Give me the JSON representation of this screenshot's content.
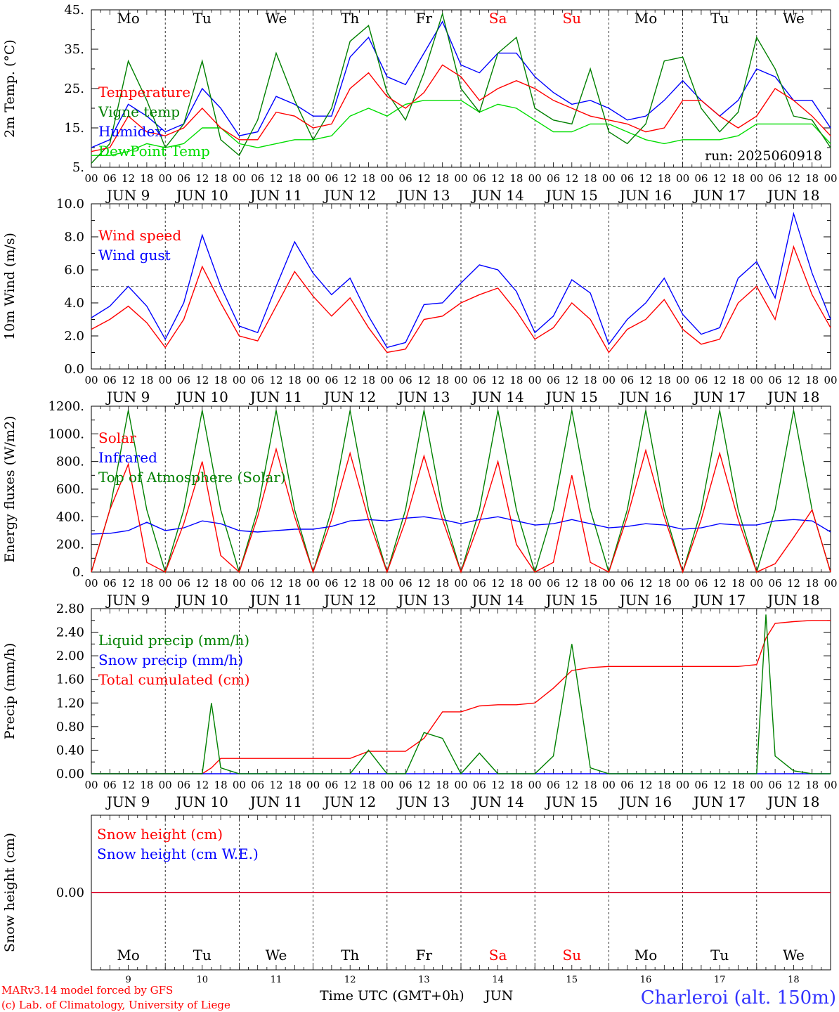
{
  "days": [
    "Mo",
    "Tu",
    "We",
    "Th",
    "Fr",
    "Sa",
    "Su",
    "Mo",
    "Tu",
    "We"
  ],
  "day_colors": [
    "#000000",
    "#000000",
    "#000000",
    "#000000",
    "#000000",
    "#ff0000",
    "#ff0000",
    "#000000",
    "#000000",
    "#000000"
  ],
  "date_labels": [
    "JUN  9",
    "JUN 10",
    "JUN 11",
    "JUN 12",
    "JUN 13",
    "JUN 14",
    "JUN 15",
    "JUN 16",
    "JUN 17",
    "JUN 18"
  ],
  "hour_ticks": [
    "00",
    "06",
    "12",
    "18"
  ],
  "hour_end": "00",
  "bottom_day_numbers": [
    "9",
    "10",
    "11",
    "12",
    "13",
    "14",
    "15",
    "16",
    "17",
    "18"
  ],
  "footer": {
    "model_line": "MARv3.14 model forced by GFS",
    "copyright_line": "(c) Lab. of Climatology, University of Liege",
    "time_axis_label": "Time UTC (GMT+0h)",
    "month_label": "JUN",
    "station": "Charleroi (alt. 150m)"
  },
  "colors": {
    "red": "#ff0000",
    "green": "#008000",
    "blue": "#0000ff",
    "lightgreen": "#00dd00",
    "station": "#3333ff"
  },
  "chart_data": [
    {
      "type": "line",
      "ylabel": "2m Temp. (°C)",
      "ylim": [
        5,
        45
      ],
      "ytick_labels": [
        "45.",
        "35.",
        "25.",
        "15.",
        "5."
      ],
      "ytick_values": [
        45,
        35,
        25,
        15,
        5
      ],
      "annotation": "run: 2025060918",
      "x_hours": [
        0,
        6,
        12,
        18,
        24,
        30,
        36,
        42,
        48,
        54,
        60,
        66,
        72,
        78,
        84,
        90,
        96,
        102,
        108,
        114,
        120,
        126,
        132,
        138,
        144,
        150,
        156,
        162,
        168,
        174,
        180,
        186,
        192,
        198,
        204,
        210,
        216,
        222,
        228,
        234,
        240
      ],
      "series": [
        {
          "name": "Temperature",
          "color": "#ff0000",
          "values": [
            9,
            10,
            18,
            14,
            13,
            15,
            20,
            15,
            12,
            12,
            19,
            18,
            15,
            16,
            25,
            29,
            23,
            20,
            24,
            31,
            28,
            22,
            25,
            27,
            25,
            22,
            20,
            18,
            17,
            16,
            14,
            15,
            22,
            22,
            18,
            15,
            18,
            25,
            22,
            18,
            13
          ]
        },
        {
          "name": "Vigne temp",
          "color": "#008000",
          "values": [
            6,
            11,
            32,
            22,
            10,
            16,
            32,
            12,
            8,
            17,
            34,
            22,
            12,
            20,
            37,
            41,
            24,
            17,
            29,
            44,
            25,
            19,
            34,
            38,
            20,
            17,
            16,
            30,
            14,
            11,
            16,
            32,
            33,
            20,
            14,
            19,
            38,
            30,
            18,
            17,
            10
          ]
        },
        {
          "name": "Humidex",
          "color": "#0000ff",
          "values": [
            10,
            12,
            21,
            18,
            14,
            16,
            25,
            20,
            13,
            14,
            23,
            21,
            18,
            18,
            33,
            38,
            28,
            26,
            34,
            42,
            31,
            29,
            34,
            34,
            28,
            24,
            21,
            22,
            20,
            17,
            18,
            22,
            27,
            22,
            18,
            22,
            30,
            28,
            22,
            22,
            15
          ]
        },
        {
          "name": "DewPoint Temp",
          "color": "#00dd00",
          "values": [
            8,
            8,
            9,
            11,
            10,
            11,
            15,
            15,
            11,
            10,
            11,
            12,
            12,
            13,
            18,
            20,
            18,
            21,
            22,
            22,
            22,
            19,
            21,
            20,
            17,
            14,
            14,
            16,
            16,
            14,
            12,
            11,
            12,
            12,
            12,
            13,
            16,
            16,
            16,
            16,
            11
          ]
        }
      ]
    },
    {
      "type": "line",
      "ylabel": "10m Wind (m/s)",
      "ylim": [
        0,
        10
      ],
      "ytick_labels": [
        "10.0",
        "8.0",
        "6.0",
        "4.0",
        "2.0",
        "0.0"
      ],
      "ytick_values": [
        10,
        8,
        6,
        4,
        2,
        0
      ],
      "reference_line": 5,
      "x_hours": [
        0,
        6,
        12,
        18,
        24,
        30,
        36,
        42,
        48,
        54,
        60,
        66,
        72,
        78,
        84,
        90,
        96,
        102,
        108,
        114,
        120,
        126,
        132,
        138,
        144,
        150,
        156,
        162,
        168,
        174,
        180,
        186,
        192,
        198,
        204,
        210,
        216,
        222,
        228,
        234,
        240
      ],
      "series": [
        {
          "name": "Wind speed",
          "color": "#ff0000",
          "values": [
            2.4,
            3.0,
            3.8,
            2.8,
            1.3,
            3.0,
            6.2,
            4.0,
            2.0,
            1.7,
            3.8,
            5.9,
            4.4,
            3.2,
            4.3,
            2.5,
            1.0,
            1.2,
            3.0,
            3.2,
            4.0,
            4.5,
            4.9,
            3.5,
            1.8,
            2.5,
            4.0,
            3.0,
            1.0,
            2.4,
            3.0,
            4.2,
            2.4,
            1.5,
            1.8,
            4.0,
            5.0,
            3.0,
            7.4,
            4.5,
            2.5
          ]
        },
        {
          "name": "Wind gust",
          "color": "#0000ff",
          "values": [
            3.1,
            3.8,
            5.0,
            3.8,
            1.8,
            4.0,
            8.1,
            5.0,
            2.6,
            2.2,
            5.0,
            7.7,
            5.8,
            4.5,
            5.5,
            3.2,
            1.3,
            1.6,
            3.9,
            4.0,
            5.2,
            6.3,
            6.0,
            4.7,
            2.2,
            3.2,
            5.4,
            4.6,
            1.5,
            3.0,
            4.0,
            5.5,
            3.3,
            2.1,
            2.5,
            5.5,
            6.5,
            4.3,
            9.4,
            5.8,
            3.0
          ]
        }
      ]
    },
    {
      "type": "line",
      "ylabel": "Energy fluxes (W/m2)",
      "ylim": [
        0,
        1200
      ],
      "ytick_labels": [
        "1200.",
        "1000.",
        "800.",
        "600.",
        "400.",
        "200.",
        "0."
      ],
      "ytick_values": [
        1200,
        1000,
        800,
        600,
        400,
        200,
        0
      ],
      "x_hours": [
        0,
        6,
        12,
        18,
        24,
        30,
        36,
        42,
        48,
        54,
        60,
        66,
        72,
        78,
        84,
        90,
        96,
        102,
        108,
        114,
        120,
        126,
        132,
        138,
        144,
        150,
        156,
        162,
        168,
        174,
        180,
        186,
        192,
        198,
        204,
        210,
        216,
        222,
        228,
        234,
        240
      ],
      "toa_peak": 1170,
      "series": [
        {
          "name": "Solar",
          "color": "#ff0000",
          "values": [
            0,
            450,
            780,
            70,
            0,
            350,
            800,
            120,
            0,
            400,
            890,
            400,
            0,
            380,
            860,
            380,
            0,
            370,
            840,
            380,
            0,
            360,
            800,
            200,
            0,
            70,
            700,
            70,
            0,
            400,
            880,
            400,
            0,
            380,
            860,
            380,
            0,
            60,
            250,
            450,
            0
          ]
        },
        {
          "name": "Infrared",
          "color": "#0000ff",
          "values": [
            275,
            280,
            300,
            360,
            300,
            320,
            370,
            350,
            300,
            290,
            300,
            310,
            310,
            330,
            370,
            380,
            370,
            390,
            400,
            380,
            350,
            380,
            400,
            370,
            340,
            350,
            380,
            350,
            320,
            330,
            350,
            340,
            310,
            320,
            350,
            340,
            340,
            370,
            380,
            370,
            290
          ]
        },
        {
          "name": "Top of Atmosphere (Solar)",
          "color": "#008000",
          "values": [
            0,
            450,
            1170,
            450,
            0,
            450,
            1170,
            450,
            0,
            450,
            1170,
            450,
            0,
            450,
            1170,
            450,
            0,
            450,
            1170,
            450,
            0,
            450,
            1170,
            450,
            0,
            450,
            1170,
            450,
            0,
            450,
            1170,
            450,
            0,
            450,
            1170,
            450,
            0,
            450,
            1170,
            450,
            0
          ]
        }
      ]
    },
    {
      "type": "line",
      "ylabel": "Precip (mm/h)",
      "ylim": [
        0,
        2.8
      ],
      "ytick_labels": [
        "2.80",
        "2.40",
        "2.00",
        "1.60",
        "1.20",
        "0.80",
        "0.40",
        "0.00"
      ],
      "ytick_values": [
        2.8,
        2.4,
        2.0,
        1.6,
        1.2,
        0.8,
        0.4,
        0.0
      ],
      "x_hours": [
        0,
        6,
        12,
        18,
        24,
        30,
        36,
        39,
        42,
        48,
        54,
        60,
        66,
        72,
        78,
        84,
        90,
        96,
        102,
        108,
        114,
        120,
        126,
        132,
        138,
        144,
        150,
        156,
        162,
        168,
        174,
        180,
        186,
        192,
        198,
        204,
        210,
        216,
        219,
        222,
        228,
        234,
        240
      ],
      "series": [
        {
          "name": "Liquid precip (mm/h)",
          "color": "#008000",
          "values": [
            0,
            0,
            0,
            0,
            0,
            0,
            0,
            1.2,
            0.1,
            0,
            0,
            0,
            0,
            0,
            0,
            0,
            0.4,
            0,
            0,
            0.7,
            0.6,
            0,
            0.35,
            0,
            0,
            0,
            0.3,
            2.2,
            0.1,
            0,
            0,
            0,
            0,
            0,
            0,
            0,
            0,
            0,
            2.7,
            0.3,
            0.05,
            0,
            0
          ]
        },
        {
          "name": "Snow precip (mm/h)",
          "color": "#0000ff",
          "values": [
            0,
            0,
            0,
            0,
            0,
            0,
            0,
            0,
            0,
            0,
            0,
            0,
            0,
            0,
            0,
            0,
            0,
            0,
            0,
            0,
            0,
            0,
            0,
            0,
            0,
            0,
            0,
            0,
            0,
            0,
            0,
            0,
            0,
            0,
            0,
            0,
            0,
            0,
            0,
            0,
            0,
            0,
            0
          ]
        },
        {
          "name": "Total cumulated (cm)",
          "color": "#ff0000",
          "values": [
            0,
            0,
            0,
            0,
            0,
            0,
            0,
            0.1,
            0.26,
            0.26,
            0.26,
            0.26,
            0.26,
            0.26,
            0.26,
            0.26,
            0.38,
            0.38,
            0.38,
            0.6,
            1.05,
            1.05,
            1.15,
            1.17,
            1.17,
            1.2,
            1.45,
            1.75,
            1.8,
            1.82,
            1.82,
            1.82,
            1.82,
            1.82,
            1.82,
            1.82,
            1.82,
            1.85,
            2.3,
            2.55,
            2.58,
            2.6,
            2.6
          ]
        }
      ]
    },
    {
      "type": "line",
      "ylabel": "Snow height (cm)",
      "ytick_labels": [
        "0.00"
      ],
      "ytick_values": [
        0
      ],
      "x_hours": [
        0,
        240
      ],
      "series": [
        {
          "name": "Snow height (cm)",
          "color": "#ff0000",
          "values": [
            0,
            0
          ]
        },
        {
          "name": "Snow height (cm W.E.)",
          "color": "#0000ff",
          "values": [
            0,
            0
          ]
        }
      ]
    }
  ]
}
